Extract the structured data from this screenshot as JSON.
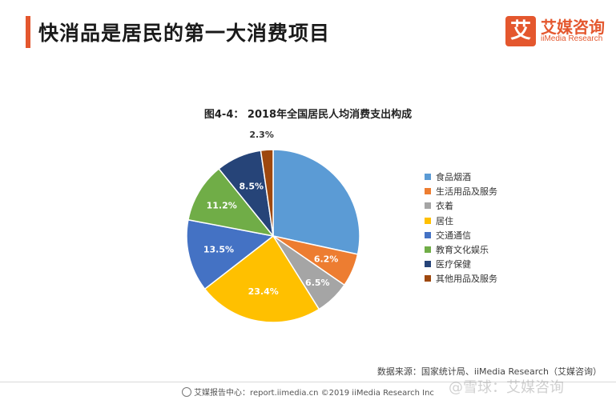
{
  "header": {
    "title": "快消品是居民的第一大消费项目",
    "accent_color": "#e4572e"
  },
  "logo": {
    "mark": "艾",
    "name_cn": "艾媒咨询",
    "name_en": "iiMedia Research"
  },
  "chart_data": {
    "type": "pie",
    "title": "图4-4： 2018年全国居民人均消费支出构成",
    "legend_position": "right",
    "categories": [
      "食品烟酒",
      "生活用品及服务",
      "衣着",
      "居住",
      "交通通信",
      "教育文化娱乐",
      "医疗保健",
      "其他用品及服务"
    ],
    "values": [
      28.4,
      6.2,
      6.5,
      23.4,
      13.5,
      11.2,
      8.5,
      2.3
    ],
    "labels": [
      "",
      "6.2%",
      "6.5%",
      "23.4%",
      "13.5%",
      "11.2%",
      "8.5%",
      "2.3%"
    ],
    "colors": [
      "#5b9bd5",
      "#ed7d31",
      "#a5a5a5",
      "#ffc000",
      "#4472c4",
      "#70ad47",
      "#264478",
      "#9e480e"
    ]
  },
  "source": "数据来源：国家统计局、iiMedia Research（艾媒咨询）",
  "footer": {
    "text": "艾媒报告中心：report.iimedia.cn    ©2019  iiMedia Research  Inc"
  },
  "watermark": "@雪球：艾媒咨询"
}
